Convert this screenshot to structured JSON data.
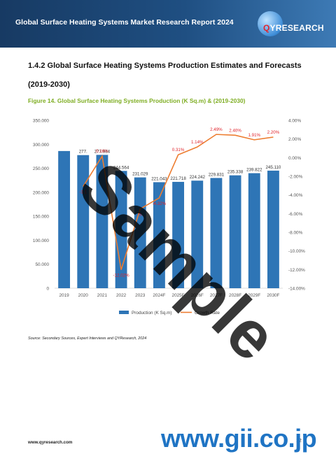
{
  "header": {
    "title": "Global Surface Heating Systems Market Research Report 2024",
    "logo_q": "Q",
    "logo_rest": "YRESEARCH"
  },
  "section": {
    "title": "1.4.2  Global Surface Heating Systems Production Estimates and Forecasts (2019-2030)"
  },
  "figure": {
    "title": "Figure 14.  Global Surface Heating Systems Production (K Sq.m) & (2019-2030)"
  },
  "chart_data": {
    "type": "bar",
    "categories": [
      "2019",
      "2020",
      "2021",
      "2022",
      "2023",
      "2024F",
      "2025F",
      "2026F",
      "2027F",
      "2028F",
      "2029F",
      "2030F"
    ],
    "series": [
      {
        "name": "Production (K Sq.m)",
        "type": "bar",
        "color": "#2e75b6",
        "values": [
          286000,
          277500,
          277984,
          244564,
          231029,
          221043,
          221718,
          224242,
          229831,
          235338,
          239822,
          245110
        ],
        "labels": [
          "",
          "277.",
          "277.984",
          "244.564",
          "231.029",
          "221.043",
          "221.718",
          "224.242",
          "229.831",
          "235.338",
          "239.822",
          "245.110"
        ]
      },
      {
        "name": "Growth Rate",
        "type": "line",
        "color": "#ed7d31",
        "values": [
          null,
          -3.1,
          0.16,
          -12.02,
          -5.5,
          -4.32,
          0.31,
          1.14,
          2.49,
          2.4,
          1.91,
          2.2
        ],
        "labels": [
          "",
          "-3.1",
          "0.16%",
          "-12.02%",
          "-5.",
          "-4.32%",
          "0.31%",
          "1.14%",
          "2.49%",
          "2.40%",
          "1.91%",
          "2.20%"
        ]
      }
    ],
    "y_left": {
      "min": 0,
      "max": 350000,
      "ticks": [
        "0",
        "50.000",
        "100.000",
        "150.000",
        "200.000",
        "250.000",
        "300.000",
        "350.000"
      ]
    },
    "y_right": {
      "min": -14,
      "max": 4,
      "ticks": [
        "-14.00%",
        "-12.00%",
        "-10.00%",
        "-8.00%",
        "-6.00%",
        "-4.00%",
        "-2.00%",
        "0.00%",
        "2.00%",
        "4.00%"
      ]
    },
    "legend": "bottom",
    "grid": false
  },
  "source": "Source: Secondary Sources, Expert Interviews and QYResearch, 2024",
  "footer": {
    "url": "www.qyresearch.com",
    "page": "12"
  },
  "watermark": {
    "sample": "Sample",
    "site": "www.gii.co.jp"
  }
}
